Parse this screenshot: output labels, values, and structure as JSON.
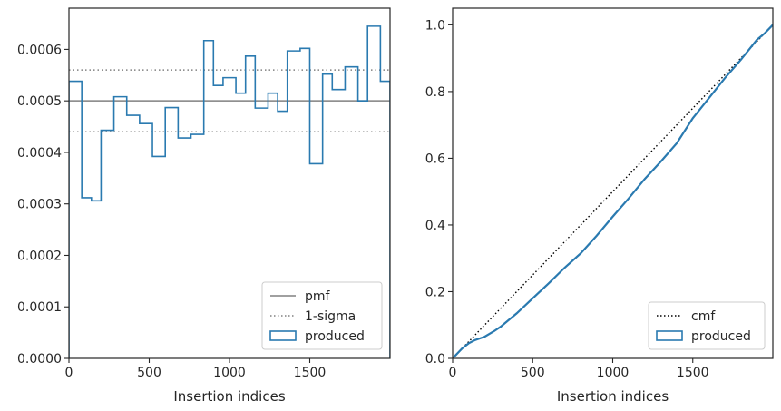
{
  "chart_data": [
    {
      "type": "step",
      "xlabel": "Insertion indices",
      "ylabel": "",
      "xlim": [
        0,
        2000
      ],
      "ylim": [
        0,
        0.00068
      ],
      "x_ticks": [
        0,
        500,
        1000,
        1500
      ],
      "x_tick_labels": [
        "0",
        "500",
        "1000",
        "1500"
      ],
      "y_ticks": [
        0,
        0.0001,
        0.0002,
        0.0003,
        0.0004,
        0.0005,
        0.0006
      ],
      "y_tick_labels": [
        "0.0000",
        "0.0001",
        "0.0002",
        "0.0003",
        "0.0004",
        "0.0005",
        "0.0006"
      ],
      "grid": false,
      "legend_position": "lower right",
      "bin_edges": [
        0,
        80,
        140,
        200,
        280,
        360,
        440,
        520,
        600,
        680,
        760,
        840,
        900,
        960,
        1040,
        1100,
        1160,
        1240,
        1300,
        1360,
        1440,
        1500,
        1580,
        1640,
        1720,
        1800,
        1860,
        1940,
        2000
      ],
      "series": [
        {
          "name": "pmf",
          "style": "solid",
          "color": "#808080",
          "value": 0.0005
        },
        {
          "name": "1-sigma",
          "style": "dotted",
          "color": "#808080",
          "values": [
            0.00044,
            0.00056
          ]
        },
        {
          "name": "produced",
          "style": "step",
          "color": "#2a7ab0",
          "values": [
            0.000538,
            0.000312,
            0.000306,
            0.000443,
            0.000508,
            0.000472,
            0.000456,
            0.000392,
            0.000487,
            0.000428,
            0.000435,
            0.000617,
            0.00053,
            0.000545,
            0.000515,
            0.000587,
            0.000486,
            0.000515,
            0.00048,
            0.000597,
            0.000602,
            0.000378,
            0.000552,
            0.000522,
            0.000566,
            0.0005,
            0.000645,
            0.000538
          ]
        }
      ]
    },
    {
      "type": "line",
      "xlabel": "Insertion indices",
      "ylabel": "",
      "xlim": [
        0,
        2000
      ],
      "ylim": [
        0,
        1.05
      ],
      "x_ticks": [
        0,
        500,
        1000,
        1500
      ],
      "x_tick_labels": [
        "0",
        "500",
        "1000",
        "1500"
      ],
      "y_ticks": [
        0,
        0.2,
        0.4,
        0.6,
        0.8,
        1.0
      ],
      "y_tick_labels": [
        "0.0",
        "0.2",
        "0.4",
        "0.6",
        "0.8",
        "1.0"
      ],
      "grid": false,
      "legend_position": "lower right",
      "series": [
        {
          "name": "cmf",
          "style": "dotted",
          "color": "#000000",
          "x": [
            0,
            2000
          ],
          "values": [
            0,
            1.0
          ]
        },
        {
          "name": "produced",
          "style": "step",
          "color": "#2a7ab0",
          "x": [
            0,
            20,
            60,
            100,
            140,
            200,
            260,
            300,
            400,
            500,
            600,
            700,
            800,
            900,
            1000,
            1100,
            1200,
            1300,
            1400,
            1500,
            1600,
            1700,
            1800,
            1900,
            1950,
            2000
          ],
          "values": [
            0,
            0.01,
            0.03,
            0.045,
            0.055,
            0.065,
            0.082,
            0.095,
            0.135,
            0.18,
            0.225,
            0.272,
            0.315,
            0.368,
            0.425,
            0.48,
            0.538,
            0.59,
            0.645,
            0.72,
            0.78,
            0.84,
            0.895,
            0.955,
            0.975,
            1.0
          ]
        }
      ]
    }
  ]
}
